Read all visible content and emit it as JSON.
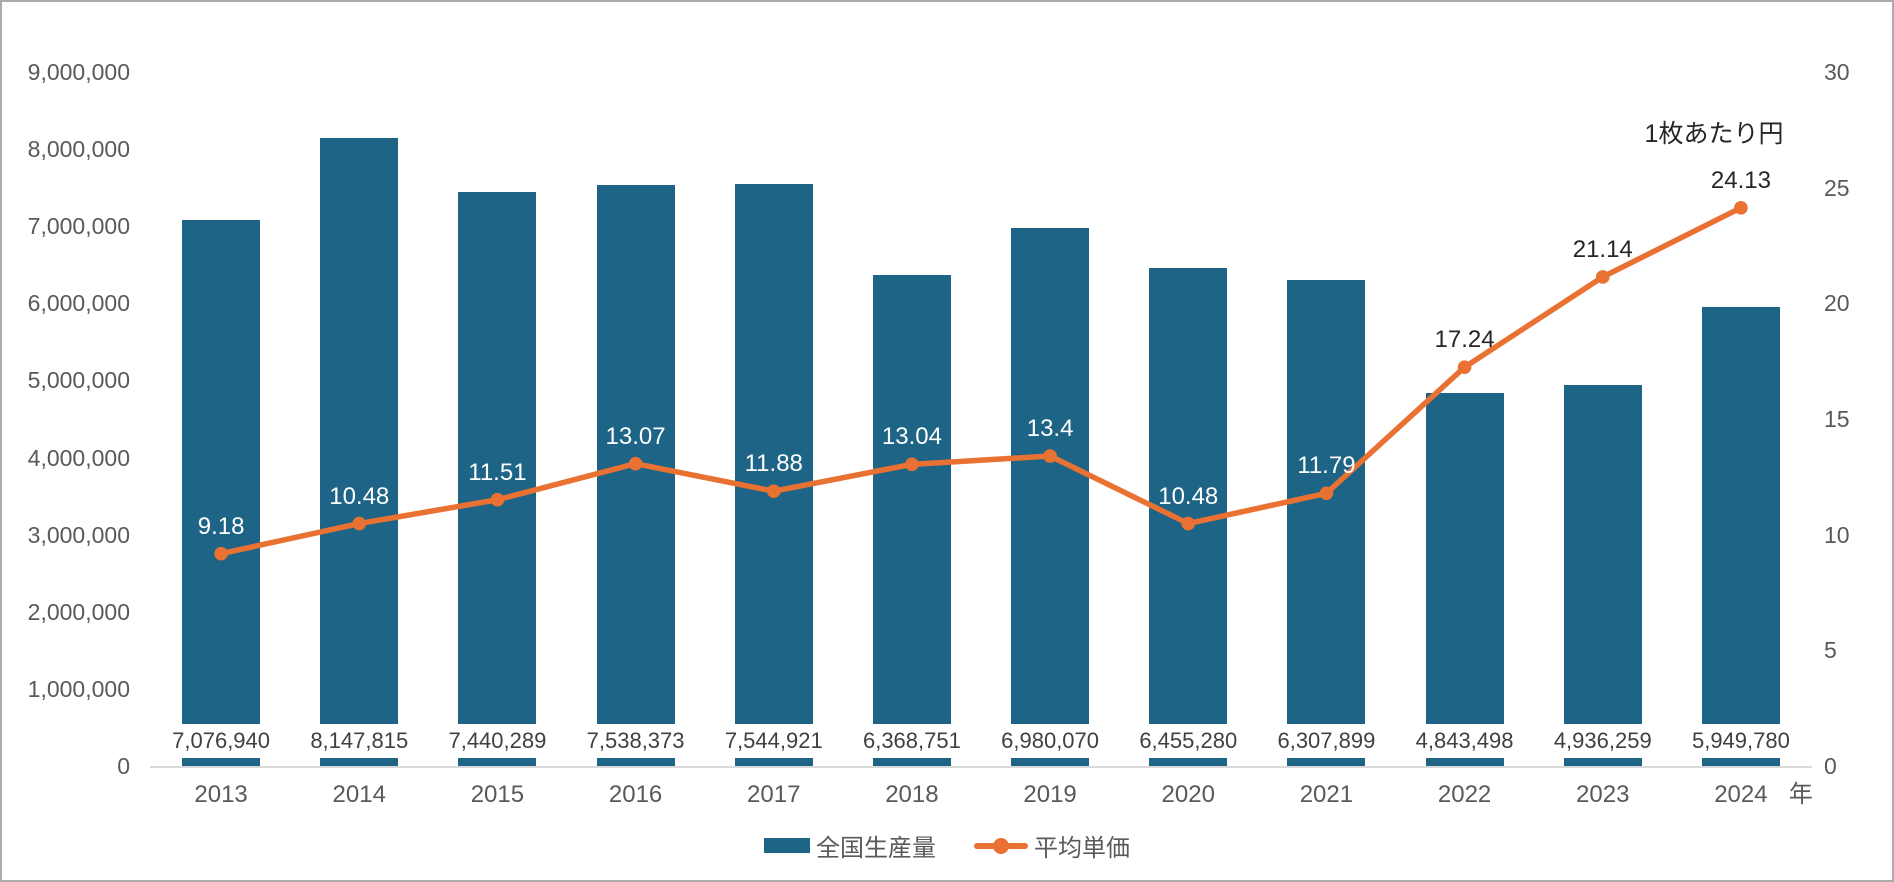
{
  "chart": {
    "unit_label": "1枚あたり円",
    "x_axis_suffix": "年",
    "legend": [
      {
        "label": "全国生産量",
        "type": "bar"
      },
      {
        "label": "平均単価",
        "type": "line"
      }
    ],
    "colors": {
      "bar": "#1E6486",
      "line": "#E97132",
      "axis_text": "#595959",
      "value_label": "#404040",
      "dark_label": "#262626",
      "axis_line": "#D9D9D9",
      "white_label": "#FFFFFF"
    }
  },
  "chart_data": {
    "type": "bar",
    "combo": "bar+line, dual axis",
    "title": "",
    "categories": [
      "2013",
      "2014",
      "2015",
      "2016",
      "2017",
      "2018",
      "2019",
      "2020",
      "2021",
      "2022",
      "2023",
      "2024"
    ],
    "series": [
      {
        "name": "全国生産量",
        "type": "bar",
        "axis": "left",
        "values": [
          7076940,
          8147815,
          7440289,
          7538373,
          7544921,
          6368751,
          6980070,
          6455280,
          6307899,
          4843498,
          4936259,
          5949780
        ]
      },
      {
        "name": "平均単価",
        "type": "line",
        "axis": "right",
        "values": [
          9.18,
          10.48,
          11.51,
          13.07,
          11.88,
          13.04,
          13.4,
          10.48,
          11.79,
          17.24,
          21.14,
          24.13
        ]
      }
    ],
    "left_axis": {
      "min": 0,
      "max": 9000000,
      "step": 1000000,
      "format": "comma"
    },
    "right_axis": {
      "min": 0,
      "max": 30,
      "step": 5,
      "title": "1枚あたり円"
    },
    "xlabel": "年",
    "ylabel": "",
    "grid": false,
    "legend_position": "bottom",
    "bar_value_labels": "inside base, white boxes",
    "line_point_labels": "above points"
  }
}
